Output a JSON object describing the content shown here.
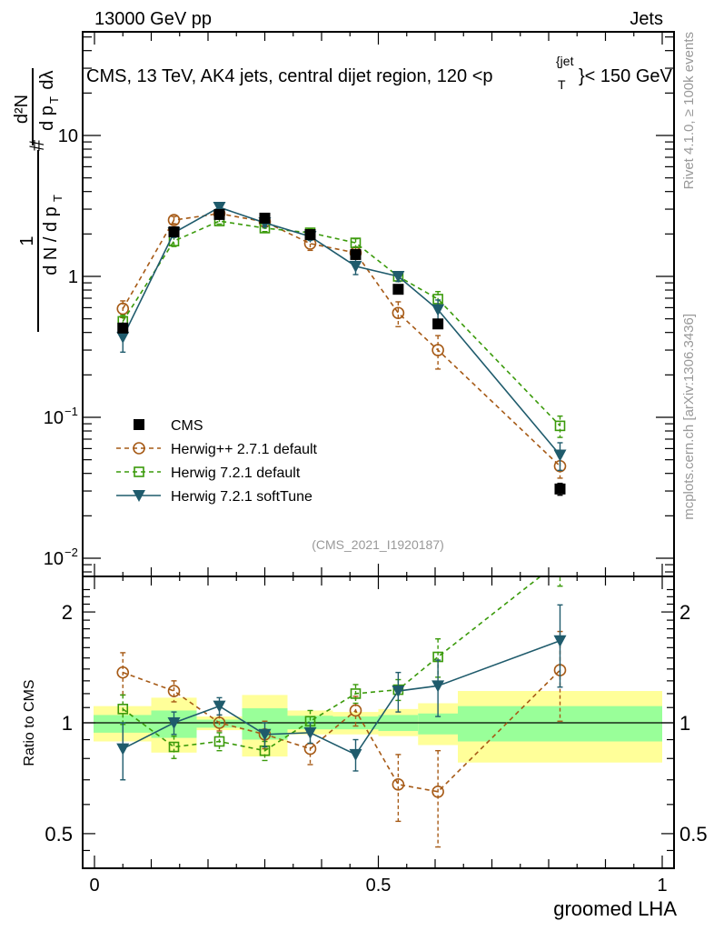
{
  "header": {
    "left": "13000 GeV pp",
    "right": "Jets"
  },
  "side_labels": {
    "rivet": "Rivet 4.1.0, ≥ 100k events",
    "mcplots": "mcplots.cern.ch [arXiv:1306.3436]"
  },
  "chart_data": [
    {
      "type": "line",
      "panel": "main",
      "title": "CMS, 13 TeV, AK4 jets, central dijet region, 120 <p_T^{jet}< 150 GeV",
      "title_main": "CMS, 13 TeV, AK4 jets, central dijet region, 120 <p",
      "title_sup": "{jet",
      "title_sub": "T",
      "title_tail": "}< 150 GeV",
      "ylabel": "1/(dN/dp_T) d²N/(dp_T dλ)",
      "yscale": "log",
      "ylim": [
        0.0075,
        60
      ],
      "xlim": [
        -0.02,
        1.02
      ],
      "yticks": [
        {
          "value": 10,
          "label": "10"
        },
        {
          "value": 1,
          "label": "1"
        },
        {
          "value": 0.1,
          "label": "10",
          "exp": "−1"
        },
        {
          "value": 0.01,
          "label": "10",
          "exp": "−2"
        }
      ],
      "annotation": "(CMS_2021_I1920187)",
      "legend_position": "lower-left",
      "bin_edges": [
        0,
        0.1,
        0.18,
        0.26,
        0.34,
        0.42,
        0.5,
        0.57,
        0.64,
        1.0
      ],
      "x": [
        0.05,
        0.14,
        0.22,
        0.3,
        0.38,
        0.46,
        0.535,
        0.605,
        0.82
      ],
      "series": [
        {
          "name": "CMS",
          "color": "#000000",
          "marker": "square-filled",
          "line": "none",
          "values": [
            0.43,
            2.07,
            2.75,
            2.59,
            1.98,
            1.43,
            0.81,
            0.46,
            0.031
          ],
          "err": [
            0.03,
            0.1,
            0.06,
            0.2,
            0.08,
            0.06,
            0.04,
            0.03,
            0.003
          ]
        },
        {
          "name": "Herwig++ 2.7.1 default",
          "color": "#a65a16",
          "marker": "circle-open",
          "line": "dashed",
          "values": [
            0.59,
            2.51,
            2.79,
            2.44,
            1.71,
            1.47,
            0.55,
            0.3,
            0.045
          ],
          "err": [
            0.08,
            0.15,
            0.15,
            0.15,
            0.18,
            0.15,
            0.11,
            0.08,
            0.008
          ]
        },
        {
          "name": "Herwig 7.2.1 default",
          "color": "#3a9a0a",
          "marker": "square-open",
          "line": "dashed",
          "values": [
            0.48,
            1.78,
            2.47,
            2.2,
            2.04,
            1.73,
            1.0,
            0.69,
            0.087
          ],
          "err": [
            0.05,
            0.15,
            0.12,
            0.12,
            0.12,
            0.12,
            0.08,
            0.09,
            0.015
          ]
        },
        {
          "name": "Herwig 7.2.1 softTune",
          "color": "#1f5b6c",
          "marker": "triangle-down-filled",
          "line": "solid",
          "values": [
            0.37,
            2.04,
            3.09,
            2.4,
            1.92,
            1.18,
            1.0,
            0.58,
            0.054
          ],
          "err": [
            0.08,
            0.15,
            0.15,
            0.15,
            0.12,
            0.15,
            0.08,
            0.1,
            0.012
          ]
        }
      ]
    },
    {
      "type": "line",
      "panel": "ratio",
      "ylabel": "Ratio to CMS",
      "xlabel": "groomed LHA",
      "yscale": "log",
      "ylim": [
        0.42,
        2.4
      ],
      "xlim": [
        -0.02,
        1.02
      ],
      "yticks": [
        {
          "value": 2,
          "label": "2"
        },
        {
          "value": 1,
          "label": "1"
        },
        {
          "value": 0.5,
          "label": "0.5"
        }
      ],
      "xticks": [
        {
          "value": 0,
          "label": "0"
        },
        {
          "value": 0.5,
          "label": "0.5"
        },
        {
          "value": 1,
          "label": "1"
        }
      ],
      "band_colors": {
        "inner": "#99ff99",
        "outer": "#ffff99"
      },
      "bands": {
        "inner_low": [
          0.94,
          0.91,
          0.97,
          0.9,
          0.96,
          0.96,
          0.95,
          0.93,
          0.89
        ],
        "inner_high": [
          1.05,
          1.08,
          1.02,
          1.095,
          1.045,
          1.04,
          1.05,
          1.06,
          1.11
        ],
        "outer_low": [
          0.89,
          0.83,
          0.955,
          0.81,
          0.93,
          0.93,
          0.92,
          0.87,
          0.78
        ],
        "outer_high": [
          1.11,
          1.17,
          1.04,
          1.19,
          1.08,
          1.07,
          1.09,
          1.13,
          1.22
        ]
      },
      "x": [
        0.05,
        0.14,
        0.22,
        0.3,
        0.38,
        0.46,
        0.535,
        0.605,
        0.82
      ],
      "series": [
        {
          "name": "Herwig++ 2.7.1 default",
          "color": "#a65a16",
          "marker": "circle-open",
          "line": "dashed",
          "values": [
            1.37,
            1.22,
            1.0,
            0.93,
            0.85,
            1.08,
            0.68,
            0.65,
            1.39
          ],
          "err": [
            0.18,
            0.08,
            0.05,
            0.08,
            0.08,
            0.1,
            0.14,
            0.19,
            0.38
          ]
        },
        {
          "name": "Herwig 7.2.1 default",
          "color": "#3a9a0a",
          "marker": "square-open",
          "line": "dashed",
          "values": [
            1.09,
            0.86,
            0.89,
            0.84,
            1.01,
            1.2,
            1.23,
            1.51,
            2.75
          ],
          "err": [
            0.1,
            0.06,
            0.05,
            0.05,
            0.07,
            0.07,
            0.08,
            0.18,
            0.4
          ]
        },
        {
          "name": "Herwig 7.2.1 softTune",
          "color": "#1f5b6c",
          "marker": "triangle-down-filled",
          "line": "solid",
          "values": [
            0.85,
            1.0,
            1.11,
            0.93,
            0.94,
            0.82,
            1.22,
            1.26,
            1.67
          ],
          "err": [
            0.15,
            0.07,
            0.06,
            0.07,
            0.06,
            0.08,
            0.15,
            0.22,
            0.42
          ]
        }
      ]
    }
  ]
}
